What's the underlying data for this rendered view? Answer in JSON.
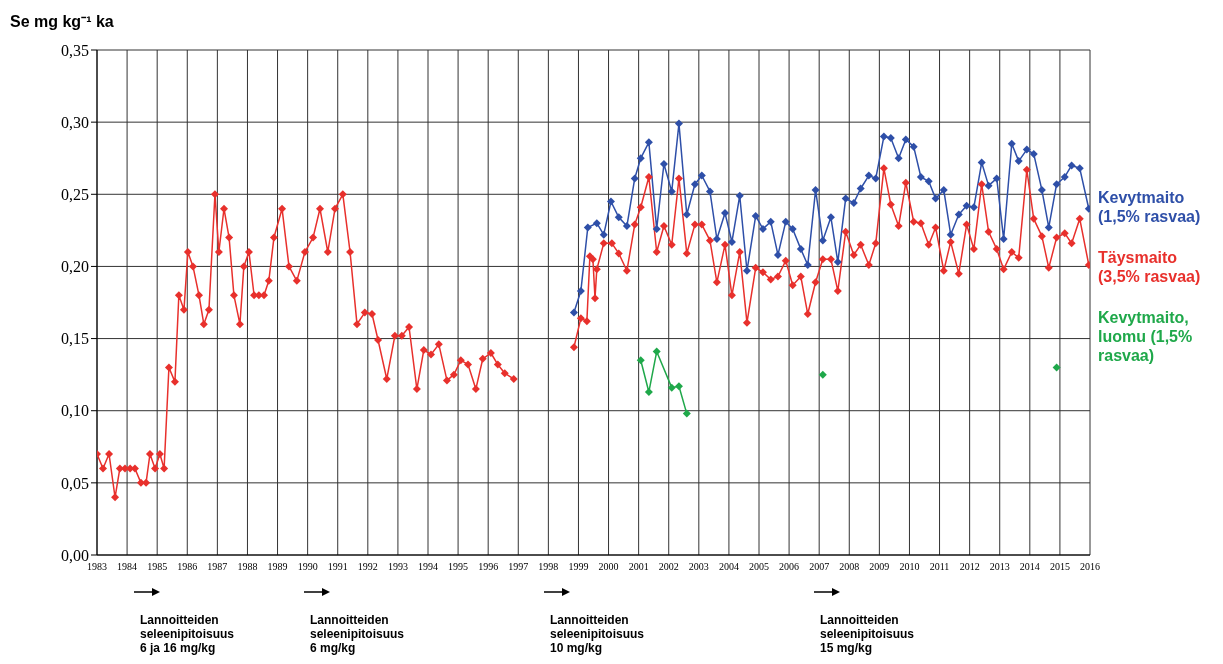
{
  "chart_data": {
    "type": "line",
    "ylabel": "Se mg kg⁻¹ ka",
    "xlim": [
      1983,
      2016
    ],
    "xticks": [
      1983,
      1984,
      1985,
      1986,
      1987,
      1988,
      1989,
      1990,
      1991,
      1992,
      1993,
      1994,
      1995,
      1996,
      1997,
      1998,
      1999,
      2000,
      2001,
      2002,
      2003,
      2004,
      2005,
      2006,
      2007,
      2008,
      2009,
      2010,
      2011,
      2012,
      2013,
      2014,
      2015,
      2016
    ],
    "ylim": [
      0,
      0.35
    ],
    "yticks": [
      {
        "value": 0,
        "label": "0,00"
      },
      {
        "value": 0.05,
        "label": "0,05"
      },
      {
        "value": 0.1,
        "label": "0,10"
      },
      {
        "value": 0.15,
        "label": "0,15"
      },
      {
        "value": 0.2,
        "label": "0,20"
      },
      {
        "value": 0.25,
        "label": "0,25"
      },
      {
        "value": 0.3,
        "label": "0,30"
      },
      {
        "value": 0.35,
        "label": "0,35"
      }
    ],
    "grid": true,
    "legend": "right",
    "marker": "diamond",
    "line_style": "solid",
    "series": [
      {
        "name": "Kevytmaito (1,5% rasvaa)",
        "color": "#2e4fa8",
        "x": [
          1998.85,
          1999.08,
          1999.31,
          1999.61,
          1999.84,
          2000.08,
          2000.34,
          2000.61,
          2000.87,
          2001.07,
          2001.34,
          2001.6,
          2001.84,
          2002.1,
          2002.34,
          2002.6,
          2002.87,
          2003.1,
          2003.37,
          2003.6,
          2003.87,
          2004.1,
          2004.36,
          2004.6,
          2004.89,
          2005.13,
          2005.39,
          2005.63,
          2005.89,
          2006.12,
          2006.39,
          2006.62,
          2006.88,
          2007.12,
          2007.39,
          2007.62,
          2007.88,
          2008.15,
          2008.38,
          2008.65,
          2008.88,
          2009.15,
          2009.38,
          2009.64,
          2009.88,
          2010.14,
          2010.38,
          2010.64,
          2010.87,
          2011.14,
          2011.37,
          2011.64,
          2011.9,
          2012.14,
          2012.4,
          2012.63,
          2012.9,
          2013.13,
          2013.4,
          2013.63,
          2013.9,
          2014.13,
          2014.4,
          2014.63,
          2014.89,
          2015.16,
          2015.39,
          2015.66,
          2015.96
        ],
        "values": [
          0.168,
          0.183,
          0.227,
          0.23,
          0.222,
          0.245,
          0.234,
          0.228,
          0.261,
          0.275,
          0.286,
          0.226,
          0.271,
          0.252,
          0.299,
          0.236,
          0.257,
          0.263,
          0.252,
          0.219,
          0.237,
          0.217,
          0.249,
          0.197,
          0.235,
          0.226,
          0.231,
          0.208,
          0.231,
          0.226,
          0.212,
          0.201,
          0.253,
          0.218,
          0.234,
          0.203,
          0.247,
          0.244,
          0.254,
          0.263,
          0.261,
          0.29,
          0.289,
          0.275,
          0.288,
          0.283,
          0.262,
          0.259,
          0.247,
          0.253,
          0.222,
          0.236,
          0.242,
          0.241,
          0.272,
          0.256,
          0.261,
          0.219,
          0.285,
          0.273,
          0.281,
          0.278,
          0.253,
          0.227,
          0.257,
          0.262,
          0.27,
          0.268,
          0.24
        ]
      },
      {
        "name": "Täysmaito (3,5% rasvaa)",
        "color": "#e8302c",
        "x": [
          1983,
          1983.2,
          1983.4,
          1983.6,
          1983.76,
          1983.93,
          1984.1,
          1984.26,
          1984.46,
          1984.63,
          1984.76,
          1984.93,
          1985.09,
          1985.23,
          1985.39,
          1985.59,
          1985.72,
          1985.89,
          1986.02,
          1986.19,
          1986.39,
          1986.55,
          1986.72,
          1986.92,
          1987.05,
          1987.22,
          1987.39,
          1987.55,
          1987.75,
          1987.88,
          1988.05,
          1988.22,
          1988.38,
          1988.55,
          1988.71,
          1988.88,
          1989.15,
          1989.38,
          1989.64,
          1989.91,
          1990.18,
          1990.41,
          1990.67,
          1990.91,
          1991.17,
          1991.41,
          1991.64,
          1991.9,
          1992.14,
          1992.34,
          1992.63,
          1992.9,
          1993.13,
          1993.37,
          1993.63,
          1993.86,
          1994.1,
          1994.36,
          1994.63,
          1994.86,
          1995.09,
          1995.33,
          1995.59,
          1995.82,
          1996.09,
          1996.32,
          1996.55,
          1996.85,
          1997.8,
          1998.85,
          1999.08,
          1999.28,
          1999.38,
          1999.48,
          1999.55,
          1999.61,
          1999.84,
          2000.11,
          2000.34,
          2000.61,
          2000.87,
          2001.07,
          2001.34,
          2001.6,
          2001.84,
          2002.1,
          2002.34,
          2002.6,
          2002.87,
          2003.1,
          2003.37,
          2003.6,
          2003.87,
          2004.1,
          2004.36,
          2004.6,
          2004.89,
          2005.13,
          2005.39,
          2005.63,
          2005.89,
          2006.12,
          2006.39,
          2006.62,
          2006.88,
          2007.12,
          2007.39,
          2007.62,
          2007.88,
          2008.15,
          2008.38,
          2008.65,
          2008.88,
          2009.15,
          2009.38,
          2009.64,
          2009.88,
          2010.14,
          2010.38,
          2010.64,
          2010.87,
          2011.14,
          2011.37,
          2011.64,
          2011.9,
          2012.14,
          2012.4,
          2012.63,
          2012.9,
          2013.13,
          2013.4,
          2013.63,
          2013.9,
          2014.13,
          2014.4,
          2014.63,
          2014.89,
          2015.16,
          2015.39,
          2015.66,
          2015.96
        ],
        "values": [
          0.07,
          0.06,
          0.07,
          0.04,
          0.06,
          0.06,
          0.06,
          0.06,
          0.05,
          0.05,
          0.07,
          0.06,
          0.07,
          0.06,
          0.13,
          0.12,
          0.18,
          0.17,
          0.21,
          0.2,
          0.18,
          0.16,
          0.17,
          0.25,
          0.21,
          0.24,
          0.22,
          0.18,
          0.16,
          0.2,
          0.21,
          0.18,
          0.18,
          0.18,
          0.19,
          0.22,
          0.24,
          0.2,
          0.19,
          0.21,
          0.22,
          0.24,
          0.21,
          0.24,
          0.25,
          0.21,
          0.16,
          0.168,
          0.167,
          0.149,
          0.122,
          0.152,
          0.152,
          0.158,
          0.115,
          0.142,
          0.139,
          0.146,
          0.121,
          0.125,
          0.135,
          0.132,
          0.115,
          0.136,
          0.14,
          0.132,
          0.126,
          0.122,
          null,
          0.144,
          0.164,
          0.162,
          0.207,
          0.205,
          0.178,
          0.198,
          0.216,
          0.216,
          0.209,
          0.197,
          0.229,
          0.241,
          0.262,
          0.21,
          0.228,
          0.215,
          0.261,
          0.209,
          0.229,
          0.229,
          0.218,
          0.189,
          0.215,
          0.18,
          0.21,
          0.161,
          0.199,
          0.196,
          0.191,
          0.193,
          0.204,
          0.187,
          0.193,
          0.167,
          0.189,
          0.205,
          0.205,
          0.183,
          0.224,
          0.208,
          0.215,
          0.201,
          0.216,
          0.268,
          0.243,
          0.228,
          0.258,
          0.231,
          0.23,
          0.215,
          0.227,
          0.197,
          0.217,
          0.195,
          0.229,
          0.212,
          0.257,
          0.224,
          0.212,
          0.198,
          0.21,
          0.206,
          0.267,
          0.233,
          0.221,
          0.199,
          0.22,
          0.223,
          0.216,
          0.233,
          0.201
        ]
      },
      {
        "name": "Kevytmaito, luomu (1,5% rasvaa)",
        "color": "#1fa84a",
        "x": [
          2001.07,
          2001.34,
          2001.6,
          2002.1,
          2002.34,
          2002.6,
          2005,
          2007.12,
          2011,
          2014.89
        ],
        "values": [
          0.135,
          0.113,
          0.141,
          0.116,
          0.117,
          0.098,
          null,
          0.125,
          null,
          0.13
        ]
      }
    ],
    "annotations": [
      "Lannoitteiden seleenipitoisuus 6 ja 16 mg/kg",
      "Lannoitteiden seleenipitoisuus 6 mg/kg",
      "Lannoitteiden seleenipitoisuus 10 mg/kg",
      "Lannoitteiden seleenipitoisuus 15 mg/kg"
    ]
  }
}
